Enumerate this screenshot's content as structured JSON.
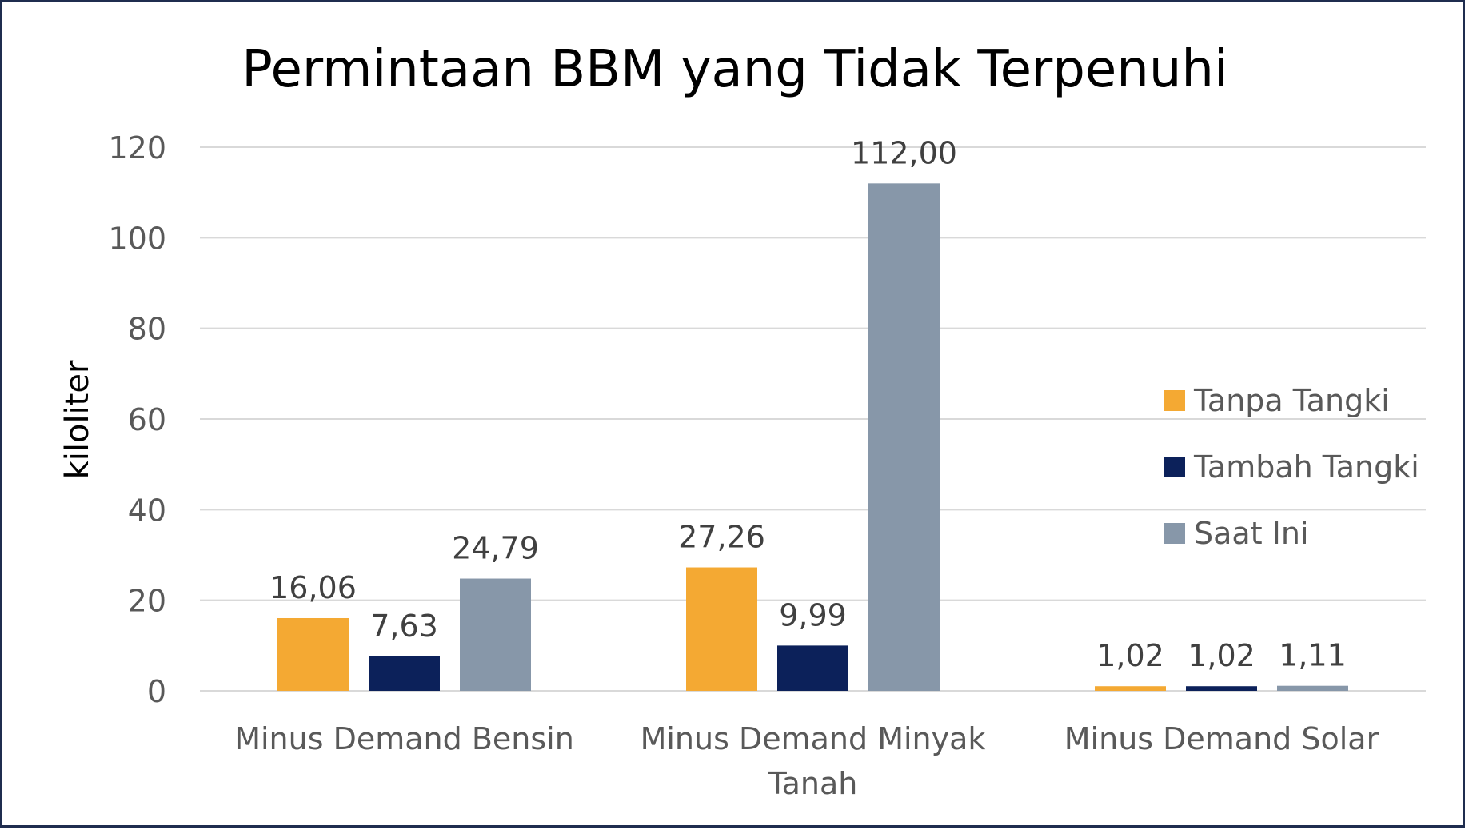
{
  "chart_data": {
    "type": "bar",
    "title": "Permintaan BBM yang Tidak Terpenuhi",
    "ylabel": "kiloliter",
    "xlabel": "",
    "ylim": [
      0,
      120
    ],
    "yticks": [
      0,
      20,
      40,
      60,
      80,
      100,
      120
    ],
    "grid": true,
    "legend_position": "right",
    "categories": [
      [
        "Minus Demand Bensin"
      ],
      [
        "Minus Demand Minyak",
        "Tanah"
      ],
      [
        "Minus Demand Solar"
      ]
    ],
    "series": [
      {
        "name": "Tanpa Tangki",
        "color": "#f4a933",
        "values": [
          16.06,
          27.26,
          1.02
        ],
        "labels": [
          "16,06",
          "27,26",
          "1,02"
        ]
      },
      {
        "name": "Tambah Tangki",
        "color": "#0c215a",
        "values": [
          7.63,
          9.99,
          1.02
        ],
        "labels": [
          "7,63",
          "9,99",
          "1,02"
        ]
      },
      {
        "name": "Saat Ini",
        "color": "#8797a9",
        "values": [
          24.79,
          112.0,
          1.11
        ],
        "labels": [
          "24,79",
          "112,00",
          "1,11"
        ]
      }
    ]
  }
}
